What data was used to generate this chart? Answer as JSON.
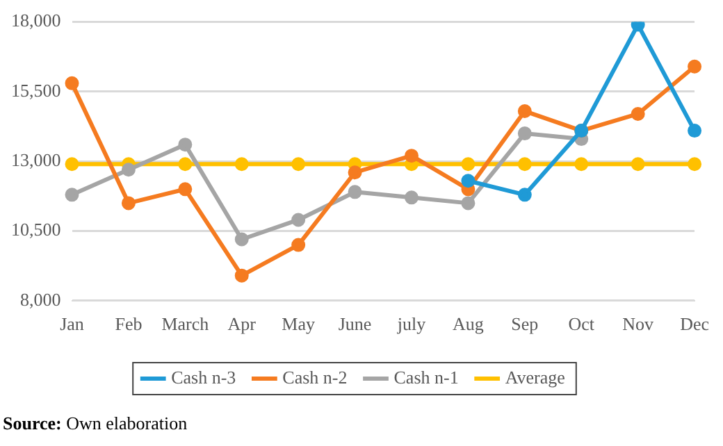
{
  "chart_data": {
    "type": "line",
    "categories": [
      "Jan",
      "Feb",
      "March",
      "Apr",
      "May",
      "June",
      "july",
      "Aug",
      "Sep",
      "Oct",
      "Nov",
      "Dec"
    ],
    "series": [
      {
        "name": "Cash n-3",
        "color": "#1f9ad6",
        "values": [
          null,
          null,
          null,
          null,
          null,
          null,
          null,
          12300,
          11800,
          14100,
          17900,
          14100
        ]
      },
      {
        "name": "Cash n-2",
        "color": "#f57b20",
        "values": [
          15800,
          11500,
          12000,
          8900,
          10000,
          12600,
          13200,
          12000,
          14800,
          14100,
          14700,
          16400
        ]
      },
      {
        "name": "Cash n-1",
        "color": "#a5a5a5",
        "values": [
          11800,
          12700,
          13600,
          10200,
          10900,
          11900,
          11700,
          11500,
          14000,
          13800,
          null,
          null
        ]
      },
      {
        "name": "Average",
        "color": "#ffc000",
        "values": [
          12900,
          12900,
          12900,
          12900,
          12900,
          12900,
          12900,
          12900,
          12900,
          12900,
          12900,
          12900
        ]
      }
    ],
    "ylim": [
      8000,
      18000
    ],
    "yticks": [
      {
        "value": 8000,
        "label": "8,000"
      },
      {
        "value": 10500,
        "label": "10,500"
      },
      {
        "value": 13000,
        "label": "13,000"
      },
      {
        "value": 15500,
        "label": "15,500"
      },
      {
        "value": 18000,
        "label": "18,000"
      }
    ],
    "grid": "y",
    "legend": "bottom",
    "marker": "circle",
    "line_style": "solid",
    "annotations": [
      "Source: Own elaboration"
    ]
  }
}
